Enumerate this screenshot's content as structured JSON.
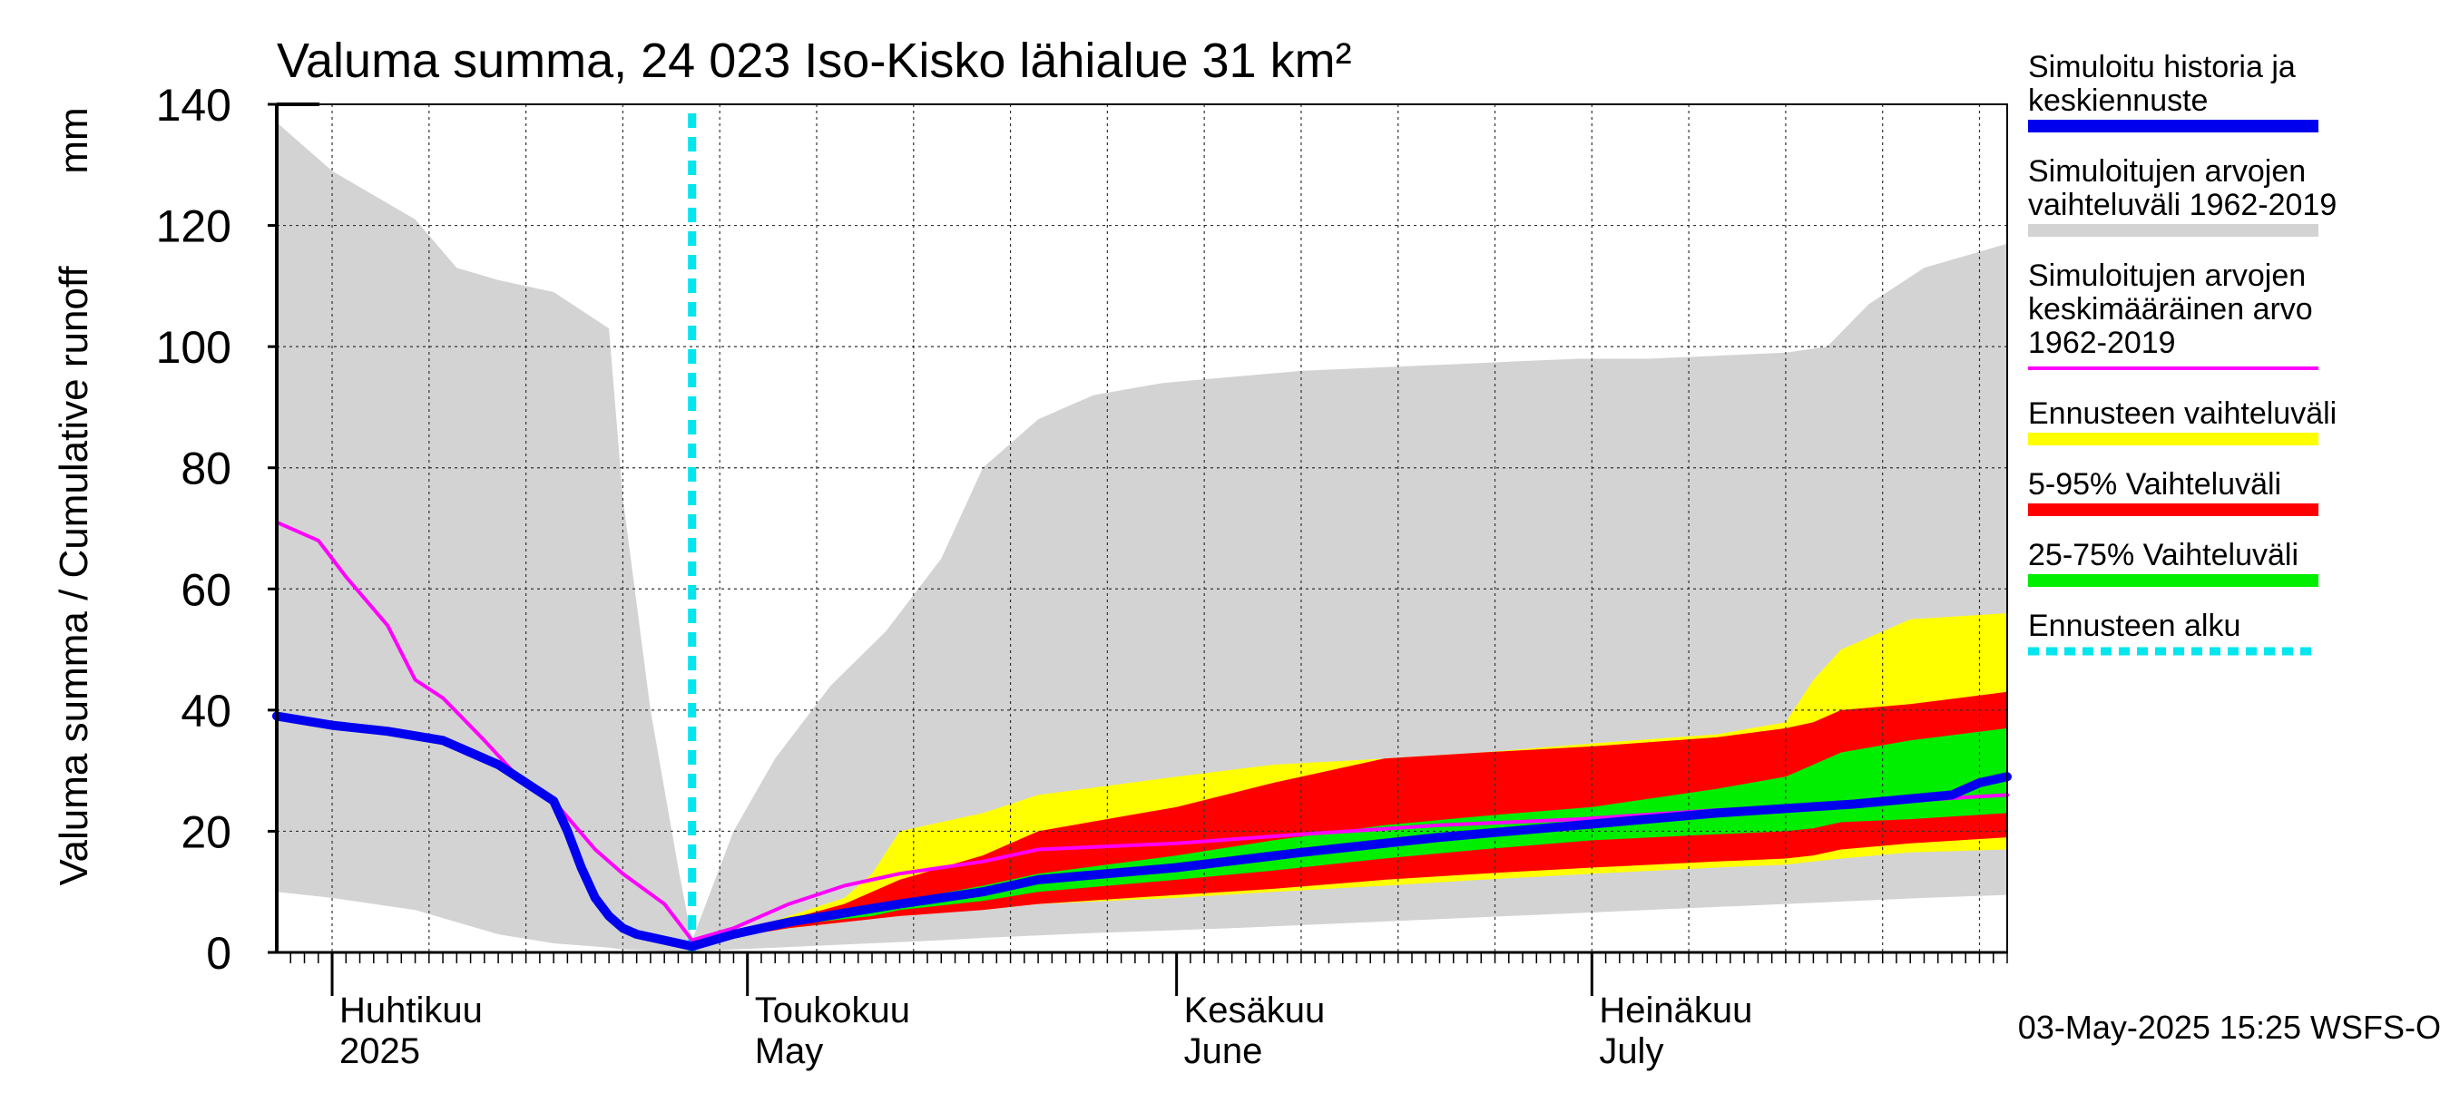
{
  "chart_data": {
    "type": "area",
    "title": "Valuma summa, 24 023 Iso-Kisko lähialue 31 km²",
    "ylabel": "Valuma summa / Cumulative runoff",
    "yunit": "mm",
    "ylim": [
      0,
      140
    ],
    "yticks": [
      0,
      20,
      40,
      60,
      80,
      100,
      120,
      140
    ],
    "xlim": [
      "2025-03-28",
      "2025-07-31"
    ],
    "grid": true,
    "month_labels": [
      {
        "date": "2025-04-01",
        "fi": "Huhtikuu",
        "en": "2025"
      },
      {
        "date": "2025-05-01",
        "fi": "Toukokuu",
        "en": "May"
      },
      {
        "date": "2025-06-01",
        "fi": "Kesäkuu",
        "en": "June"
      },
      {
        "date": "2025-07-01",
        "fi": "Heinäkuu",
        "en": "July"
      }
    ],
    "forecast_start": "2025-04-27",
    "footer": "03-May-2025 15:25 WSFS-O",
    "legend_position": "right",
    "legend": [
      {
        "label": "Simuloitu historia ja keskiennuste",
        "lines": [
          "Simuloitu historia ja",
          "keskiennuste"
        ],
        "color": "#0000ee",
        "style": "thick"
      },
      {
        "label": "Simuloitujen arvojen vaihteluväli 1962-2019",
        "lines": [
          "Simuloitujen arvojen",
          "vaihteluväli 1962-2019"
        ],
        "color": "#d3d3d3",
        "style": "thick"
      },
      {
        "label": "Simuloitujen arvojen keskimääräinen arvo 1962-2019",
        "lines": [
          "Simuloitujen arvojen",
          "keskimääräinen arvo",
          "   1962-2019"
        ],
        "color": "#ff00ff",
        "style": "thin"
      },
      {
        "label": "Ennusteen vaihteluväli",
        "lines": [
          "Ennusteen vaihteluväli"
        ],
        "color": "#ffff00",
        "style": "thick"
      },
      {
        "label": "5-95% Vaihteluväli",
        "lines": [
          "5-95% Vaihteluväli"
        ],
        "color": "#ff0000",
        "style": "thick"
      },
      {
        "label": "25-75% Vaihteluväli",
        "lines": [
          "25-75% Vaihteluväli"
        ],
        "color": "#00ee00",
        "style": "thick"
      },
      {
        "label": "Ennusteen alku",
        "lines": [
          "Ennusteen alku"
        ],
        "color": "#00e5ee",
        "style": "dashed"
      }
    ],
    "series": [
      {
        "name": "Simuloitujen arvojen vaihteluväli 1962-2019",
        "kind": "band",
        "color": "#d3d3d3",
        "x": [
          "2025-03-28",
          "2025-04-01",
          "2025-04-07",
          "2025-04-10",
          "2025-04-13",
          "2025-04-17",
          "2025-04-21",
          "2025-04-22",
          "2025-04-24",
          "2025-04-26",
          "2025-04-27",
          "2025-04-30",
          "2025-05-03",
          "2025-05-07",
          "2025-05-11",
          "2025-05-15",
          "2025-05-18",
          "2025-05-22",
          "2025-05-26",
          "2025-05-31",
          "2025-06-05",
          "2025-06-10",
          "2025-06-15",
          "2025-06-20",
          "2025-06-25",
          "2025-06-30",
          "2025-07-05",
          "2025-07-10",
          "2025-07-15",
          "2025-07-18",
          "2025-07-21",
          "2025-07-25",
          "2025-07-31"
        ],
        "upper": [
          137,
          129,
          121,
          113,
          111,
          109,
          103,
          75,
          40,
          14,
          2,
          20,
          32,
          44,
          53,
          65,
          80,
          88,
          92,
          94,
          95,
          96,
          96.5,
          97,
          97.5,
          98,
          98,
          98.5,
          99,
          100,
          107,
          113,
          117
        ],
        "lower": [
          10,
          9,
          7,
          5,
          3,
          1.5,
          0.8,
          0.5,
          0.3,
          0.2,
          0.2,
          0.5,
          0.8,
          1.2,
          1.6,
          2,
          2.4,
          2.8,
          3.2,
          3.6,
          4,
          4.5,
          5,
          5.5,
          6,
          6.5,
          7,
          7.5,
          8,
          8.3,
          8.6,
          9,
          9.5
        ]
      },
      {
        "name": "Ennusteen vaihteluväli",
        "kind": "band",
        "color": "#ffff00",
        "x": [
          "2025-04-27",
          "2025-04-30",
          "2025-05-04",
          "2025-05-08",
          "2025-05-10",
          "2025-05-12",
          "2025-05-18",
          "2025-05-22",
          "2025-06-01",
          "2025-06-08",
          "2025-06-16",
          "2025-06-23",
          "2025-07-01",
          "2025-07-10",
          "2025-07-15",
          "2025-07-17",
          "2025-07-19",
          "2025-07-24",
          "2025-07-31"
        ],
        "upper": [
          1,
          3,
          6,
          9,
          13,
          20,
          23,
          26,
          29,
          31,
          32,
          33,
          34.5,
          36,
          38,
          45,
          50,
          55,
          56
        ],
        "lower": [
          1,
          2.5,
          4,
          5,
          6,
          6.5,
          7,
          8,
          9,
          10,
          11,
          12,
          13,
          14,
          14.5,
          15,
          15.5,
          16.5,
          17
        ]
      },
      {
        "name": "5-95% Vaihteluväli",
        "kind": "band",
        "color": "#ff0000",
        "x": [
          "2025-04-27",
          "2025-04-30",
          "2025-05-04",
          "2025-05-08",
          "2025-05-10",
          "2025-05-12",
          "2025-05-18",
          "2025-05-22",
          "2025-06-01",
          "2025-06-08",
          "2025-06-16",
          "2025-06-23",
          "2025-07-01",
          "2025-07-10",
          "2025-07-15",
          "2025-07-17",
          "2025-07-19",
          "2025-07-24",
          "2025-07-31"
        ],
        "upper": [
          1,
          3,
          5.5,
          8,
          10,
          12,
          16,
          20,
          24,
          28,
          32,
          33,
          34,
          35.5,
          37,
          38,
          40,
          41,
          43
        ],
        "lower": [
          1,
          2.5,
          4,
          5,
          5.5,
          6,
          7,
          8,
          9.5,
          10.5,
          12,
          13,
          14,
          15,
          15.5,
          16,
          17,
          18,
          19
        ]
      },
      {
        "name": "25-75% Vaihteluväli",
        "kind": "band",
        "color": "#00ee00",
        "x": [
          "2025-04-27",
          "2025-04-30",
          "2025-05-04",
          "2025-05-08",
          "2025-05-10",
          "2025-05-12",
          "2025-05-18",
          "2025-05-22",
          "2025-06-01",
          "2025-06-08",
          "2025-06-16",
          "2025-06-23",
          "2025-07-01",
          "2025-07-10",
          "2025-07-15",
          "2025-07-17",
          "2025-07-19",
          "2025-07-24",
          "2025-07-31"
        ],
        "upper": [
          1,
          3,
          5,
          6.5,
          7.5,
          8.5,
          11,
          13,
          16,
          18.5,
          21,
          22.5,
          24,
          27,
          29,
          31,
          33,
          35,
          37
        ],
        "lower": [
          1,
          2.5,
          4.5,
          5.5,
          6,
          7,
          8.5,
          10,
          12,
          13.5,
          15.5,
          17,
          18.5,
          19.5,
          20,
          20.5,
          21.5,
          22,
          23
        ]
      },
      {
        "name": "Simuloitujen arvojen keskimääräinen arvo 1962-2019",
        "kind": "line",
        "color": "#ff00ff",
        "x": [
          "2025-03-28",
          "2025-03-31",
          "2025-04-02",
          "2025-04-05",
          "2025-04-07",
          "2025-04-09",
          "2025-04-12",
          "2025-04-14",
          "2025-04-17",
          "2025-04-20",
          "2025-04-22",
          "2025-04-25",
          "2025-04-27",
          "2025-04-30",
          "2025-05-04",
          "2025-05-08",
          "2025-05-12",
          "2025-05-18",
          "2025-05-22",
          "2025-06-01",
          "2025-06-10",
          "2025-06-20",
          "2025-06-30",
          "2025-07-10",
          "2025-07-20",
          "2025-07-31"
        ],
        "y": [
          71,
          68,
          62,
          54,
          45,
          42,
          35,
          30,
          25,
          17,
          13,
          8,
          2,
          4,
          8,
          11,
          13,
          15,
          17,
          18,
          19.5,
          21,
          22,
          23.5,
          24.5,
          26
        ]
      },
      {
        "name": "Simuloitu historia ja keskiennuste",
        "kind": "line",
        "color": "#0000ee",
        "x": [
          "2025-03-28",
          "2025-04-01",
          "2025-04-05",
          "2025-04-09",
          "2025-04-13",
          "2025-04-17",
          "2025-04-18",
          "2025-04-19",
          "2025-04-20",
          "2025-04-21",
          "2025-04-22",
          "2025-04-23",
          "2025-04-25",
          "2025-04-27",
          "2025-04-30",
          "2025-05-04",
          "2025-05-08",
          "2025-05-12",
          "2025-05-18",
          "2025-05-22",
          "2025-06-01",
          "2025-06-10",
          "2025-06-20",
          "2025-06-30",
          "2025-07-10",
          "2025-07-20",
          "2025-07-27",
          "2025-07-29",
          "2025-07-31"
        ],
        "y": [
          39,
          37.5,
          36.5,
          35,
          31,
          25,
          20,
          14,
          9,
          6,
          4,
          3,
          2,
          1,
          3,
          5,
          6.5,
          8,
          10,
          12,
          14,
          16.5,
          19,
          21,
          23,
          24.5,
          26,
          28,
          29
        ]
      }
    ]
  }
}
